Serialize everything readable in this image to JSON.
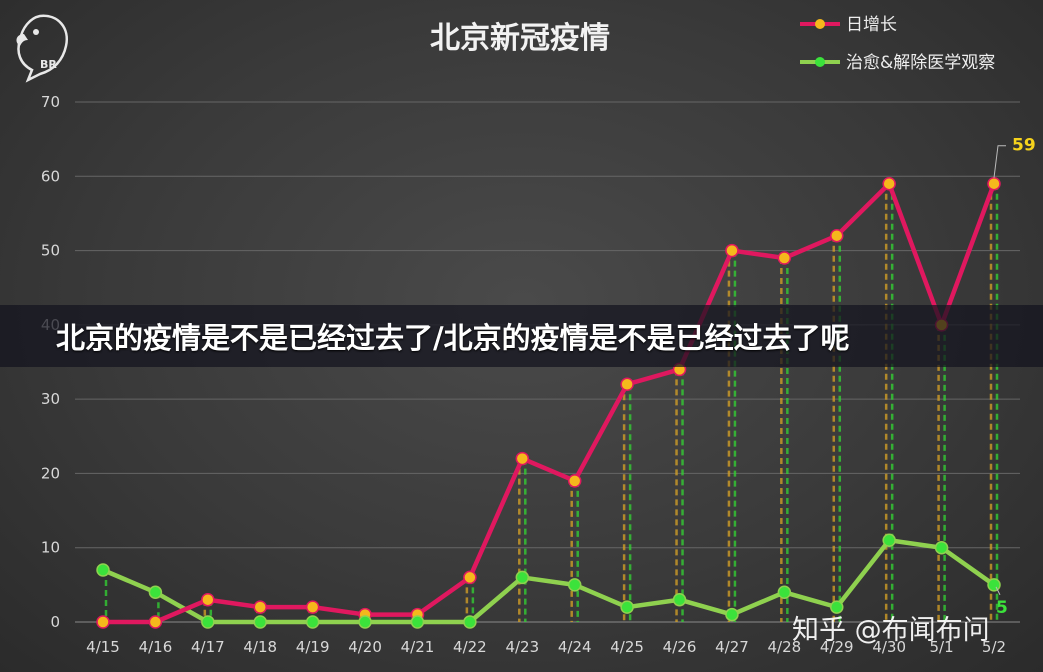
{
  "chart_data": {
    "type": "line",
    "title": "北京新冠疫情",
    "categories": [
      "4/15",
      "4/16",
      "4/17",
      "4/18",
      "4/19",
      "4/20",
      "4/21",
      "4/22",
      "4/23",
      "4/24",
      "4/25",
      "4/26",
      "4/27",
      "4/28",
      "4/29",
      "4/30",
      "5/1",
      "5/2"
    ],
    "series": [
      {
        "name": "日增长",
        "color": "#e0185f",
        "marker_color": "#f5b81c",
        "values": [
          0,
          0,
          3,
          2,
          2,
          1,
          1,
          6,
          22,
          19,
          32,
          34,
          50,
          49,
          52,
          59,
          40,
          59
        ]
      },
      {
        "name": "治愈&解除医学观察",
        "color": "#8fd14f",
        "marker_color": "#3be23b",
        "values": [
          7,
          4,
          0,
          0,
          0,
          0,
          0,
          0,
          6,
          5,
          2,
          3,
          1,
          4,
          2,
          11,
          10,
          5
        ]
      }
    ],
    "ylim": [
      0,
      70
    ],
    "yticks": [
      0,
      10,
      20,
      30,
      40,
      50,
      60,
      70
    ],
    "grid": true,
    "legend": "top-right",
    "annotations": [
      {
        "series": 0,
        "index": 17,
        "text": "59"
      },
      {
        "series": 1,
        "index": 17,
        "text": "5"
      }
    ]
  },
  "overlay": {
    "banner": "北京的疫情是不是已经过去了/北京的疫情是不是已经过去了呢",
    "watermark": "知乎 @布闻布问",
    "logo_text": "BR"
  }
}
